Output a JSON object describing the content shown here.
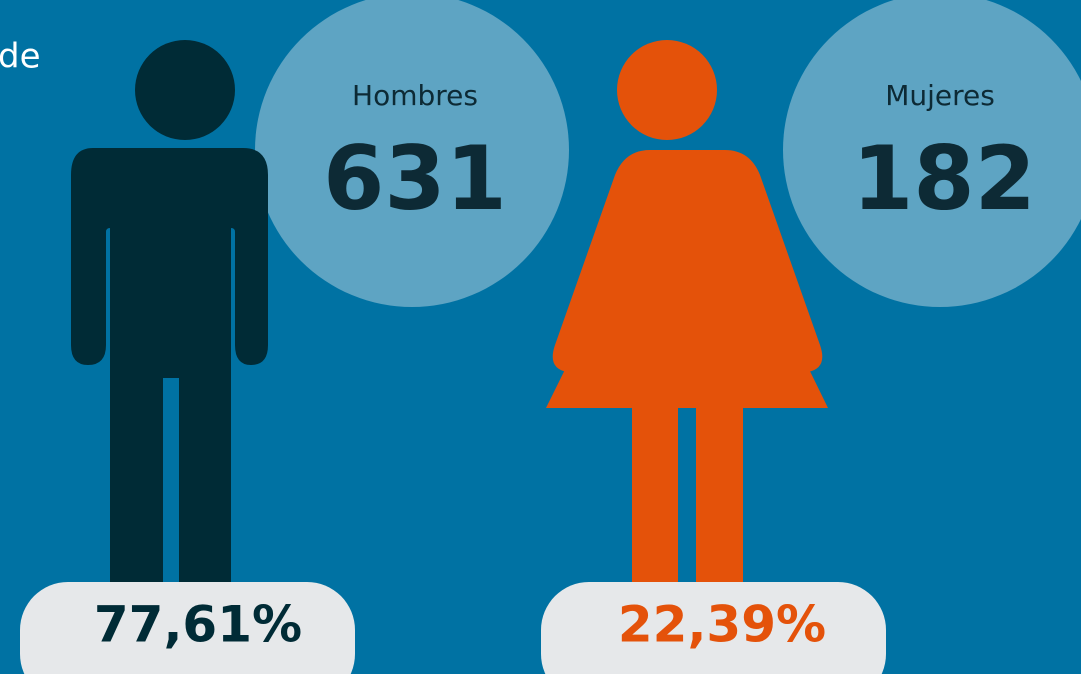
{
  "intro": "de",
  "groups": [
    {
      "label": "Hombres",
      "count": 631,
      "percent": "77,61%"
    },
    {
      "label": "Mujeres",
      "count": 182,
      "percent": "22,39%"
    }
  ]
}
